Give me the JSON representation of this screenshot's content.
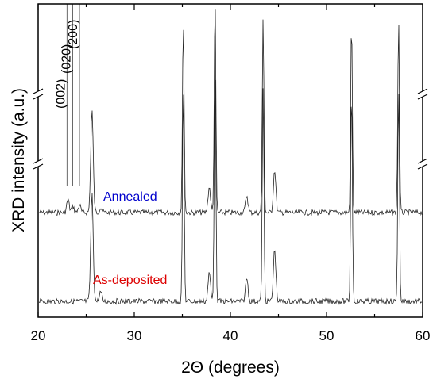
{
  "chart_data": {
    "type": "line",
    "title": "",
    "xlabel": "2Θ (degrees)",
    "ylabel": "XRD intensity (a.u.)",
    "xlim": [
      20,
      60
    ],
    "x_ticks": [
      20,
      30,
      40,
      50,
      60
    ],
    "x_tick_labels": [
      "20",
      "30",
      "40",
      "50",
      "60"
    ],
    "y_axis_breaks": 2,
    "grid": false,
    "legend": "none",
    "series": [
      {
        "name": "Annealed",
        "color": "#0000cc",
        "trace_color": "#222222",
        "baseline": 0.5,
        "peaks": [
          {
            "x": 23.1,
            "height": 0.06
          },
          {
            "x": 23.6,
            "height": 0.03
          },
          {
            "x": 24.3,
            "height": 0.035
          },
          {
            "x": 25.6,
            "height": 0.48
          },
          {
            "x": 26.5,
            "height": 0.025
          },
          {
            "x": 35.1,
            "height": 0.9
          },
          {
            "x": 37.8,
            "height": 0.12
          },
          {
            "x": 38.4,
            "height": 1.0
          },
          {
            "x": 41.7,
            "height": 0.08
          },
          {
            "x": 43.4,
            "height": 0.9
          },
          {
            "x": 44.6,
            "height": 0.2
          },
          {
            "x": 52.6,
            "height": 0.9
          },
          {
            "x": 57.5,
            "height": 0.9
          }
        ]
      },
      {
        "name": "As-deposited",
        "color": "#dd0000",
        "trace_color": "#222222",
        "baseline": 0.08,
        "peaks": [
          {
            "x": 25.6,
            "height": 0.45
          },
          {
            "x": 26.5,
            "height": 0.04
          },
          {
            "x": 35.1,
            "height": 0.9
          },
          {
            "x": 37.8,
            "height": 0.12
          },
          {
            "x": 38.4,
            "height": 1.0
          },
          {
            "x": 41.7,
            "height": 0.1
          },
          {
            "x": 43.4,
            "height": 0.9
          },
          {
            "x": 44.6,
            "height": 0.22
          },
          {
            "x": 52.6,
            "height": 0.9
          },
          {
            "x": 57.5,
            "height": 0.9
          }
        ]
      }
    ],
    "annotations": [
      {
        "text": "(002)",
        "x": 23.0
      },
      {
        "text": "(020)",
        "x": 23.6
      },
      {
        "text": "(200)",
        "x": 24.3
      }
    ]
  }
}
